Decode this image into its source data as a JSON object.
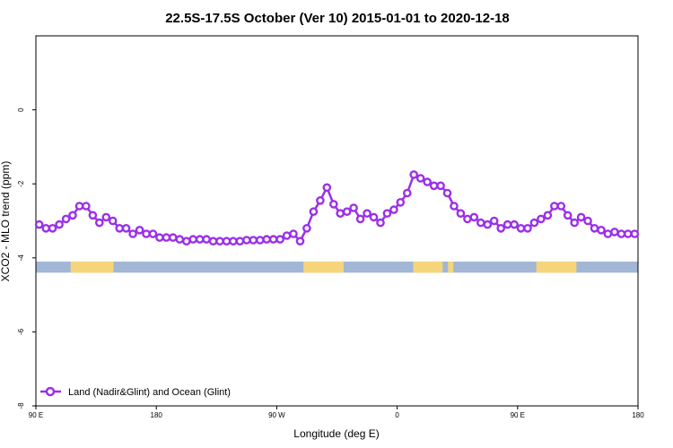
{
  "chart_data": {
    "type": "line",
    "title": "22.5S-17.5S October (Ver 10)   2015-01-01 to 2020-12-18",
    "xlabel": "Longitude (deg E)",
    "ylabel": "XCO2 - MLO trend (ppm)",
    "xlim": [
      90,
      540
    ],
    "ylim": [
      -8,
      2
    ],
    "x_ticks": [
      {
        "value": 90,
        "label": "90 E"
      },
      {
        "value": 180,
        "label": "180"
      },
      {
        "value": 270,
        "label": "90 W"
      },
      {
        "value": 360,
        "label": "0"
      },
      {
        "value": 450,
        "label": "90 E"
      },
      {
        "value": 540,
        "label": "180"
      }
    ],
    "y_ticks": [
      {
        "value": 0,
        "label": "0"
      },
      {
        "value": -2,
        "label": "-2"
      },
      {
        "value": -4,
        "label": "-4"
      },
      {
        "value": -6,
        "label": "-6"
      },
      {
        "value": -8,
        "label": "-8"
      }
    ],
    "legend_position": "bottom-left",
    "series": [
      {
        "name": "Land (Nadir&Glint) and Ocean (Glint)",
        "color": "#9b30e8",
        "x": [
          92.5,
          97.5,
          102.5,
          107.5,
          112.5,
          117.5,
          122.5,
          127.5,
          132.5,
          137.5,
          142.5,
          147.5,
          152.5,
          157.5,
          162.5,
          167.5,
          172.5,
          177.5,
          182.5,
          187.5,
          192.5,
          197.5,
          202.5,
          207.5,
          212.5,
          217.5,
          222.5,
          227.5,
          232.5,
          237.5,
          242.5,
          247.5,
          252.5,
          257.5,
          262.5,
          267.5,
          272.5,
          277.5,
          282.5,
          287.5,
          292.5,
          297.5,
          302.5,
          307.5,
          312.5,
          317.5,
          322.5,
          327.5,
          332.5,
          337.5,
          342.5,
          347.5,
          352.5,
          357.5,
          362.5,
          367.5,
          372.5,
          377.5,
          382.5,
          387.5,
          392.5,
          397.5,
          402.5,
          407.5,
          412.5,
          417.5,
          422.5,
          427.5,
          432.5,
          437.5,
          442.5,
          447.5,
          452.5,
          457.5,
          462.5,
          467.5,
          472.5,
          477.5,
          482.5,
          487.5,
          492.5,
          497.5,
          502.5,
          507.5,
          512.5,
          517.5,
          522.5,
          527.5,
          532.5,
          537.5
        ],
        "values": [
          -3.1,
          -3.2,
          -3.2,
          -3.1,
          -2.95,
          -2.85,
          -2.6,
          -2.6,
          -2.85,
          -3.05,
          -2.9,
          -3.0,
          -3.2,
          -3.2,
          -3.35,
          -3.25,
          -3.35,
          -3.35,
          -3.45,
          -3.45,
          -3.45,
          -3.5,
          -3.55,
          -3.5,
          -3.5,
          -3.5,
          -3.55,
          -3.55,
          -3.55,
          -3.55,
          -3.55,
          -3.52,
          -3.52,
          -3.52,
          -3.5,
          -3.5,
          -3.5,
          -3.4,
          -3.35,
          -3.55,
          -3.2,
          -2.75,
          -2.45,
          -2.1,
          -2.55,
          -2.8,
          -2.75,
          -2.65,
          -2.95,
          -2.8,
          -2.9,
          -3.05,
          -2.8,
          -2.7,
          -2.5,
          -2.25,
          -1.75,
          -1.85,
          -1.95,
          -2.05,
          -2.05,
          -2.25,
          -2.6,
          -2.8,
          -2.95,
          -2.9,
          -3.05,
          -3.1,
          -3.0,
          -3.2,
          -3.1,
          -3.1,
          -3.2,
          -3.2,
          -3.05,
          -2.95,
          -2.85,
          -2.6,
          -2.6,
          -2.85,
          -3.05,
          -2.9,
          -3.0,
          -3.2,
          -3.25,
          -3.35,
          -3.3,
          -3.35,
          -3.35,
          -3.35
        ]
      }
    ],
    "surface_band": {
      "y_top": -4.1,
      "y_bottom": -4.4,
      "ocean_color": "#a2b6d6",
      "land_color": "#f6d57a",
      "land_segments": [
        [
          116,
          148
        ],
        [
          290,
          320
        ],
        [
          372,
          394
        ],
        [
          398,
          402
        ],
        [
          464,
          494
        ]
      ]
    }
  }
}
